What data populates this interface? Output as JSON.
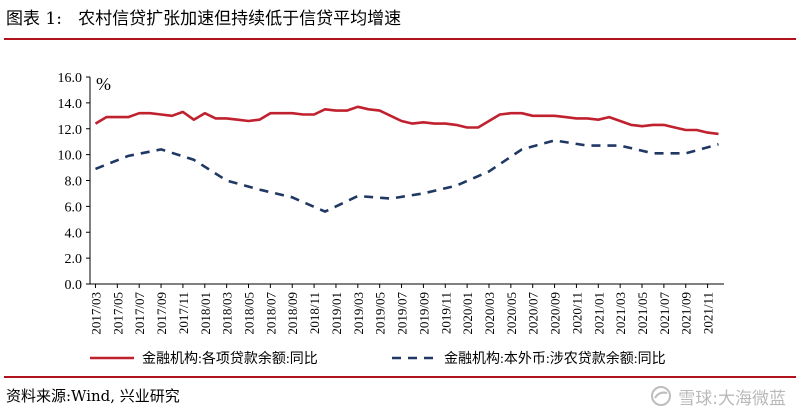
{
  "title": "图表 1:   农村信贷扩张加速但持续低于信贷平均增速",
  "source": "资料来源:Wind, 兴业研究",
  "watermark": {
    "text": "雪球:大海微蓝",
    "icon": "snowball-logo-icon"
  },
  "chart_data": {
    "type": "line",
    "ylabel": "%",
    "ylim": [
      0,
      16
    ],
    "yticks": [
      "0.0",
      "2.0",
      "4.0",
      "6.0",
      "8.0",
      "10.0",
      "12.0",
      "14.0",
      "16.0"
    ],
    "grid": false,
    "legend_placement": "bottom",
    "x": [
      "2017/03",
      "2017/04",
      "2017/05",
      "2017/06",
      "2017/07",
      "2017/08",
      "2017/09",
      "2017/10",
      "2017/11",
      "2017/12",
      "2018/01",
      "2018/02",
      "2018/03",
      "2018/04",
      "2018/05",
      "2018/06",
      "2018/07",
      "2018/08",
      "2018/09",
      "2018/10",
      "2018/11",
      "2018/12",
      "2019/01",
      "2019/02",
      "2019/03",
      "2019/04",
      "2019/05",
      "2019/06",
      "2019/07",
      "2019/08",
      "2019/09",
      "2019/10",
      "2019/11",
      "2019/12",
      "2020/01",
      "2020/02",
      "2020/03",
      "2020/04",
      "2020/05",
      "2020/06",
      "2020/07",
      "2020/08",
      "2020/09",
      "2020/10",
      "2020/11",
      "2020/12",
      "2021/01",
      "2021/02",
      "2021/03",
      "2021/04",
      "2021/05",
      "2021/06",
      "2021/07",
      "2021/08",
      "2021/09",
      "2021/10",
      "2021/11",
      "2021/12"
    ],
    "xticks": [
      "2017/03",
      "2017/05",
      "2017/07",
      "2017/09",
      "2017/11",
      "2018/01",
      "2018/03",
      "2018/05",
      "2018/07",
      "2018/09",
      "2018/11",
      "2019/01",
      "2019/03",
      "2019/05",
      "2019/07",
      "2019/09",
      "2019/11",
      "2020/01",
      "2020/03",
      "2020/05",
      "2020/07",
      "2020/09",
      "2020/11",
      "2021/01",
      "2021/03",
      "2021/05",
      "2021/07",
      "2021/09",
      "2021/11"
    ],
    "series": [
      {
        "name": "金融机构:各项贷款余额:同比",
        "color": "#c0212e",
        "style": "solid",
        "values": [
          12.4,
          12.9,
          12.9,
          12.9,
          13.2,
          13.2,
          13.1,
          13.0,
          13.3,
          12.7,
          13.2,
          12.8,
          12.8,
          12.7,
          12.6,
          12.7,
          13.2,
          13.2,
          13.2,
          13.1,
          13.1,
          13.5,
          13.4,
          13.4,
          13.7,
          13.5,
          13.4,
          13.0,
          12.6,
          12.4,
          12.5,
          12.4,
          12.4,
          12.3,
          12.1,
          12.1,
          12.6,
          13.1,
          13.2,
          13.2,
          13.0,
          13.0,
          13.0,
          12.9,
          12.8,
          12.8,
          12.7,
          12.9,
          12.6,
          12.3,
          12.2,
          12.3,
          12.3,
          12.1,
          11.9,
          11.9,
          11.7,
          11.6
        ]
      },
      {
        "name": "金融机构:本外币:涉农贷款余额:同比",
        "color": "#1f3864",
        "style": "dashed",
        "values": [
          8.9,
          null,
          null,
          9.9,
          null,
          null,
          10.4,
          null,
          null,
          9.6,
          null,
          null,
          8.0,
          null,
          null,
          7.3,
          null,
          null,
          6.7,
          null,
          null,
          5.6,
          null,
          null,
          6.8,
          null,
          null,
          6.6,
          null,
          null,
          7.0,
          null,
          null,
          7.6,
          null,
          null,
          8.7,
          null,
          null,
          10.4,
          null,
          null,
          11.1,
          null,
          null,
          10.7,
          null,
          null,
          10.7,
          null,
          null,
          10.1,
          null,
          null,
          10.1,
          null,
          null,
          10.8
        ]
      }
    ]
  }
}
